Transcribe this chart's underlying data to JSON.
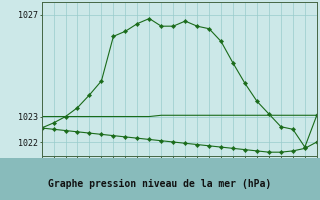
{
  "bg_color": "#cce8e8",
  "plot_bg_color": "#cce8e8",
  "bottom_bar_color": "#88bbbb",
  "grid_color": "#99cccc",
  "line_color": "#1a6b1a",
  "marker_color": "#1a6b1a",
  "xlabel": "Graphe pression niveau de la mer (hPa)",
  "xlim": [
    0,
    23
  ],
  "ylim": [
    1021.45,
    1027.5
  ],
  "ytick_vals": [
    1022,
    1023,
    1027
  ],
  "ytick_labels": [
    "1022",
    "1023",
    "1027"
  ],
  "series1_x": [
    0,
    1,
    2,
    3,
    4,
    5,
    6,
    7,
    8,
    9,
    10,
    11,
    12,
    13,
    14,
    15,
    16,
    17,
    18,
    19,
    20,
    21,
    22,
    23
  ],
  "series1_y": [
    1022.55,
    1022.75,
    1023.0,
    1023.35,
    1023.85,
    1024.4,
    1026.15,
    1026.35,
    1026.65,
    1026.85,
    1026.55,
    1026.55,
    1026.75,
    1026.55,
    1026.45,
    1025.95,
    1025.1,
    1024.3,
    1023.6,
    1023.1,
    1022.6,
    1022.5,
    1021.8,
    1023.05
  ],
  "series2_x": [
    0,
    1,
    2,
    3,
    4,
    5,
    6,
    7,
    8,
    9,
    10,
    11,
    12,
    13,
    14,
    15,
    16,
    17,
    18,
    19,
    20,
    21,
    22,
    23
  ],
  "series2_y": [
    1023.0,
    1023.0,
    1023.0,
    1023.0,
    1023.0,
    1023.0,
    1023.0,
    1023.0,
    1023.0,
    1023.0,
    1023.05,
    1023.05,
    1023.05,
    1023.05,
    1023.05,
    1023.05,
    1023.05,
    1023.05,
    1023.05,
    1023.05,
    1023.05,
    1023.05,
    1023.05,
    1023.05
  ],
  "series3_x": [
    0,
    1,
    2,
    3,
    4,
    5,
    6,
    7,
    8,
    9,
    10,
    11,
    12,
    13,
    14,
    15,
    16,
    17,
    18,
    19,
    20,
    21,
    22,
    23
  ],
  "series3_y": [
    1022.55,
    1022.5,
    1022.45,
    1022.4,
    1022.35,
    1022.3,
    1022.25,
    1022.2,
    1022.15,
    1022.1,
    1022.05,
    1022.0,
    1021.95,
    1021.9,
    1021.85,
    1021.8,
    1021.75,
    1021.7,
    1021.65,
    1021.6,
    1021.6,
    1021.65,
    1021.75,
    1022.0
  ],
  "xlabel_fontsize": 7,
  "tick_fontsize": 6,
  "lw": 0.8,
  "ms": 2.2
}
